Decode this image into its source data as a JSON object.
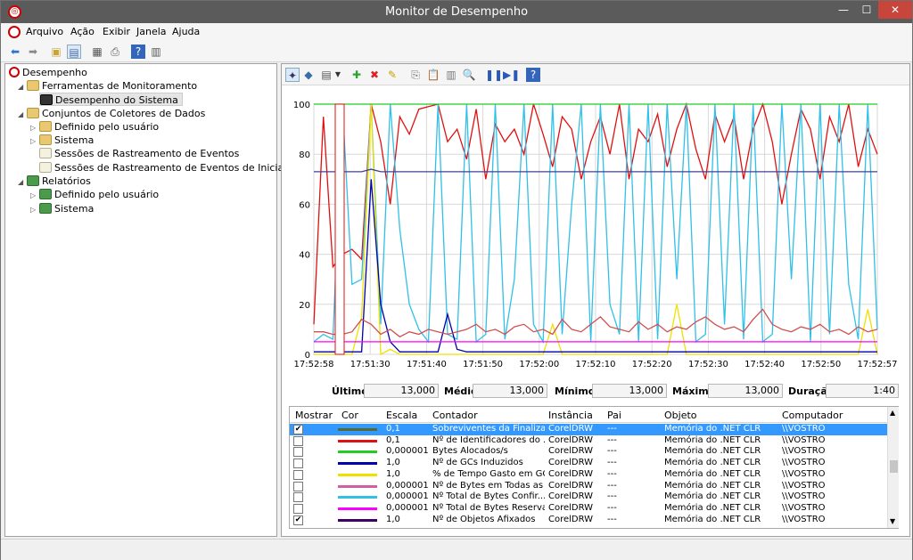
{
  "window": {
    "title": "Monitor de Desempenho",
    "min": "—",
    "max": "☐",
    "close": "✕"
  },
  "menu": [
    "Arquivo",
    "Ação",
    "Exibir",
    "Janela",
    "Ajuda"
  ],
  "tree": {
    "root": "Desempenho",
    "tools": "Ferramentas de Monitoramento",
    "perf": "Desempenho do Sistema",
    "collectors": "Conjuntos de Coletores de Dados",
    "user_defined": "Definido pelo usuário",
    "system": "Sistema",
    "event_sessions": "Sessões de Rastreamento de Eventos",
    "startup_sessions": "Sessões de Rastreamento de Eventos de Inicialização",
    "reports": "Relatórios",
    "rep_user": "Definido pelo usuário",
    "rep_system": "Sistema"
  },
  "stats": {
    "last_label": "Último",
    "last": "13,000",
    "avg_label": "Médio",
    "avg": "13,000",
    "min_label": "Mínimo",
    "min": "13,000",
    "max_label": "Máximo",
    "max": "13,000",
    "dur_label": "Duração",
    "dur": "1:40"
  },
  "list": {
    "headers": {
      "show": "Mostrar",
      "color": "Cor",
      "scale": "Escala",
      "counter": "Contador",
      "instance": "Instância",
      "parent": "Pai",
      "object": "Objeto",
      "computer": "Computador"
    },
    "rows": [
      {
        "checked": true,
        "color": "#556b2f",
        "scale": "0,1",
        "counter": "Sobreviventes da Finaliza...",
        "instance": "CorelDRW",
        "parent": "---",
        "object": "Memória do .NET CLR",
        "computer": "\\\\VOSTRO"
      },
      {
        "checked": false,
        "color": "#e01010",
        "scale": "0,1",
        "counter": "Nº de Identificadores do ...",
        "instance": "CorelDRW",
        "parent": "---",
        "object": "Memória do .NET CLR",
        "computer": "\\\\VOSTRO"
      },
      {
        "checked": false,
        "color": "#22cc22",
        "scale": "0,000001",
        "counter": "Bytes Alocados/s",
        "instance": "CorelDRW",
        "parent": "---",
        "object": "Memória do .NET CLR",
        "computer": "\\\\VOSTRO"
      },
      {
        "checked": false,
        "color": "#0000aa",
        "scale": "1,0",
        "counter": "Nº de GCs Induzidos",
        "instance": "CorelDRW",
        "parent": "---",
        "object": "Memória do .NET CLR",
        "computer": "\\\\VOSTRO"
      },
      {
        "checked": false,
        "color": "#f0e000",
        "scale": "1,0",
        "counter": "% de Tempo Gasto em GC",
        "instance": "CorelDRW",
        "parent": "---",
        "object": "Memória do .NET CLR",
        "computer": "\\\\VOSTRO"
      },
      {
        "checked": false,
        "color": "#d060a0",
        "scale": "0,000001",
        "counter": "Nº de Bytes em Todas as ...",
        "instance": "CorelDRW",
        "parent": "---",
        "object": "Memória do .NET CLR",
        "computer": "\\\\VOSTRO"
      },
      {
        "checked": false,
        "color": "#30c0e8",
        "scale": "0,000001",
        "counter": "Nº Total de Bytes Confir...",
        "instance": "CorelDRW",
        "parent": "---",
        "object": "Memória do .NET CLR",
        "computer": "\\\\VOSTRO"
      },
      {
        "checked": false,
        "color": "#ff00ff",
        "scale": "0,000001",
        "counter": "Nº Total de Bytes Reserva...",
        "instance": "CorelDRW",
        "parent": "---",
        "object": "Memória do .NET CLR",
        "computer": "\\\\VOSTRO"
      },
      {
        "checked": true,
        "color": "#400060",
        "scale": "1,0",
        "counter": "Nº de Objetos Afixados",
        "instance": "CorelDRW",
        "parent": "---",
        "object": "Memória do .NET CLR",
        "computer": "\\\\VOSTRO"
      }
    ]
  },
  "chart_data": {
    "type": "line",
    "ylim": [
      0,
      100
    ],
    "yticks": [
      "100",
      "80",
      "60",
      "40",
      "20",
      "0"
    ],
    "xticks": [
      "17:52:58",
      "17:51:30",
      "17:51:40",
      "17:51:50",
      "17:52:00",
      "17:52:10",
      "17:52:20",
      "17:52:30",
      "17:52:40",
      "17:52:50",
      "17:52:57"
    ],
    "grid": true,
    "series": [
      {
        "color": "#e01010",
        "values": [
          12,
          95,
          35,
          40,
          42,
          38,
          100,
          85,
          60,
          95,
          88,
          98,
          99,
          100,
          85,
          90,
          78,
          98,
          70,
          92,
          85,
          90,
          80,
          100,
          88,
          75,
          95,
          90,
          70,
          85,
          95,
          80,
          100,
          70,
          90,
          85,
          96,
          75,
          90,
          100,
          82,
          70,
          96,
          85,
          95,
          70,
          90,
          100,
          85,
          60,
          80,
          98,
          90,
          70,
          95,
          85,
          100,
          75,
          90,
          80
        ]
      },
      {
        "color": "#30c0e8",
        "values": [
          5,
          8,
          6,
          100,
          28,
          30,
          100,
          12,
          100,
          50,
          20,
          10,
          5,
          100,
          8,
          6,
          100,
          5,
          8,
          100,
          6,
          30,
          100,
          12,
          5,
          100,
          8,
          60,
          100,
          5,
          100,
          20,
          8,
          100,
          5,
          100,
          6,
          100,
          30,
          100,
          5,
          8,
          100,
          12,
          100,
          6,
          100,
          5,
          8,
          100,
          30,
          100,
          5,
          100,
          8,
          100,
          28,
          6,
          100,
          10
        ]
      },
      {
        "color": "#f0e000",
        "values": [
          0,
          0,
          0,
          0,
          0,
          15,
          100,
          0,
          2,
          0,
          0,
          0,
          0,
          0,
          0,
          0,
          0,
          0,
          0,
          0,
          0,
          0,
          0,
          0,
          0,
          12,
          0,
          0,
          0,
          0,
          0,
          0,
          0,
          0,
          0,
          0,
          0,
          0,
          20,
          0,
          0,
          0,
          0,
          0,
          0,
          0,
          0,
          0,
          0,
          0,
          0,
          0,
          0,
          0,
          0,
          0,
          0,
          0,
          18,
          0
        ]
      },
      {
        "color": "#0000aa",
        "values": [
          1,
          1,
          1,
          1,
          1,
          1,
          70,
          20,
          5,
          1,
          1,
          1,
          1,
          1,
          16,
          2,
          1,
          1,
          1,
          1,
          1,
          1,
          1,
          1,
          1,
          1,
          1,
          1,
          1,
          1,
          1,
          1,
          1,
          1,
          1,
          1,
          1,
          1,
          1,
          1,
          1,
          1,
          1,
          1,
          1,
          1,
          1,
          1,
          1,
          1,
          1,
          1,
          1,
          1,
          1,
          1,
          1,
          1,
          1,
          1
        ]
      },
      {
        "color": "#d05050",
        "values": [
          9,
          9,
          8,
          8,
          9,
          14,
          12,
          8,
          10,
          7,
          9,
          8,
          10,
          9,
          8,
          9,
          10,
          12,
          9,
          10,
          8,
          11,
          12,
          9,
          10,
          8,
          14,
          10,
          9,
          12,
          15,
          11,
          10,
          9,
          13,
          10,
          12,
          9,
          11,
          10,
          13,
          15,
          12,
          10,
          11,
          9,
          14,
          18,
          12,
          10,
          9,
          11,
          10,
          12,
          9,
          10,
          8,
          11,
          9,
          10
        ]
      },
      {
        "color": "#404090",
        "values": [
          73,
          73,
          73,
          73,
          73,
          73,
          74,
          73,
          73,
          73,
          73,
          73,
          73,
          73,
          73,
          73,
          73,
          73,
          73,
          73,
          73,
          73,
          73,
          73,
          73,
          73,
          73,
          73,
          73,
          73,
          73,
          73,
          73,
          73,
          73,
          73,
          73,
          73,
          73,
          73,
          73,
          73,
          73,
          73,
          73,
          73,
          73,
          73,
          73,
          73,
          73,
          73,
          73,
          73,
          73,
          73,
          73,
          73,
          73,
          73
        ]
      },
      {
        "color": "#ff00ff",
        "values": [
          5,
          5,
          5,
          5,
          5,
          5,
          5,
          5,
          5,
          5,
          5,
          5,
          5,
          5,
          5,
          5,
          5,
          5,
          5,
          5,
          5,
          5,
          5,
          5,
          5,
          5,
          5,
          5,
          5,
          5,
          5,
          5,
          5,
          5,
          5,
          5,
          5,
          5,
          5,
          5,
          5,
          5,
          5,
          5,
          5,
          5,
          5,
          5,
          5,
          5,
          5,
          5,
          5,
          5,
          5,
          5,
          5,
          5,
          5,
          5
        ]
      },
      {
        "color": "#22cc22",
        "values": [
          100,
          100,
          100,
          100,
          100,
          100,
          100,
          100,
          100,
          100,
          100,
          100,
          100,
          100,
          100,
          100,
          100,
          100,
          100,
          100,
          100,
          100,
          100,
          100,
          100,
          100,
          100,
          100,
          100,
          100,
          100,
          100,
          100,
          100,
          100,
          100,
          100,
          100,
          100,
          100,
          100,
          100,
          100,
          100,
          100,
          100,
          100,
          100,
          100,
          100,
          100,
          100,
          100,
          100,
          100,
          100,
          100,
          100,
          100,
          100
        ]
      }
    ]
  }
}
